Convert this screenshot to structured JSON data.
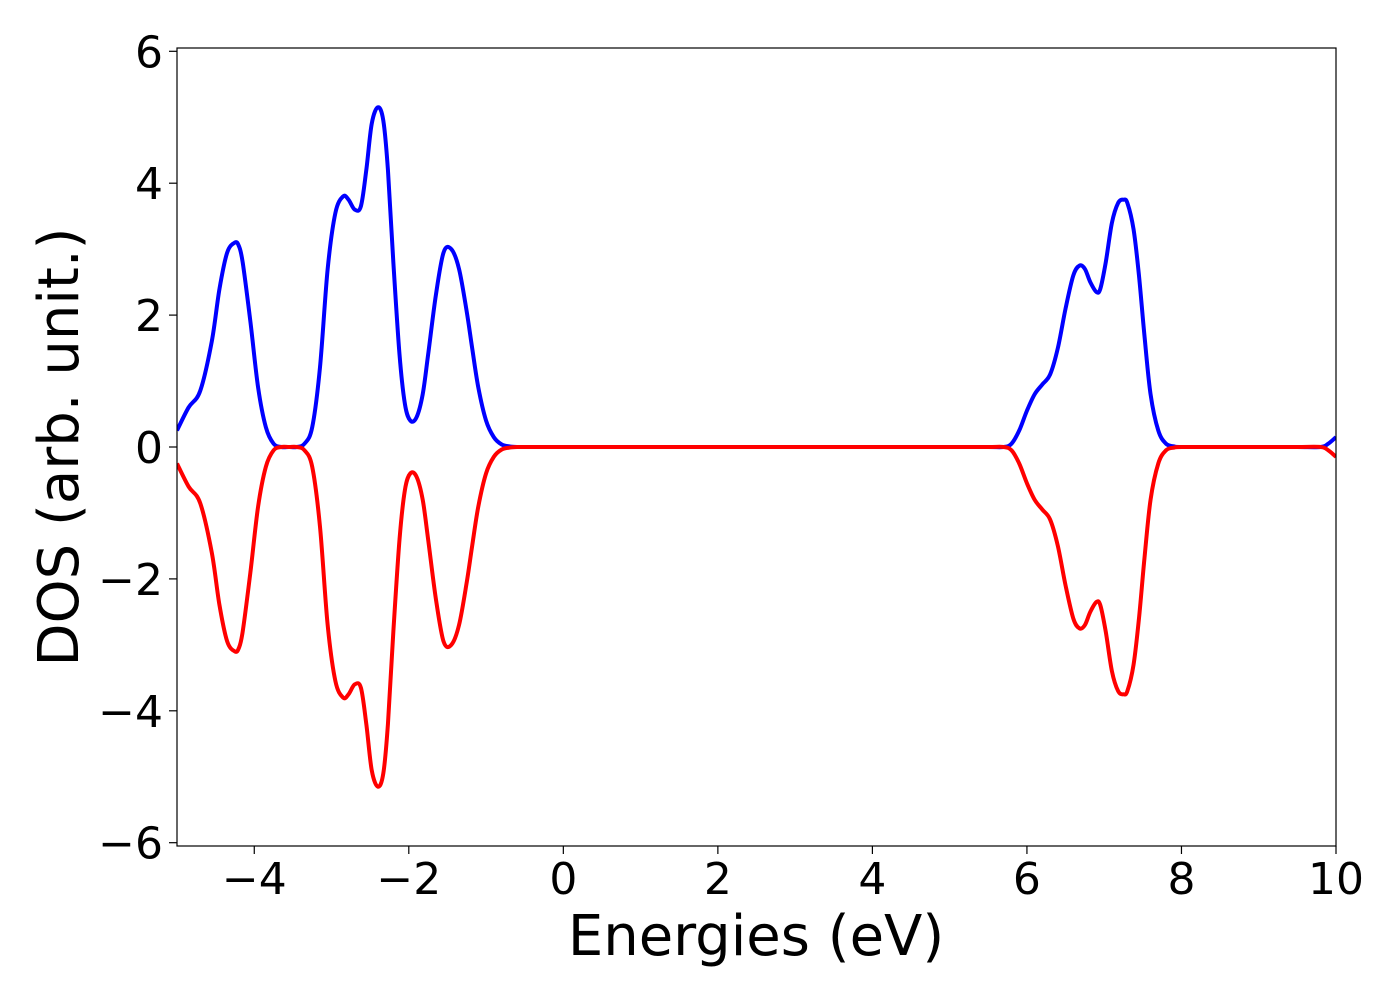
{
  "chart_data": {
    "type": "line",
    "title": "",
    "xlabel": "Energies (eV)",
    "ylabel": "DOS (arb. unit.)",
    "xlim": [
      -5,
      10
    ],
    "ylim": [
      -6.05,
      6.05
    ],
    "xticks": [
      -4,
      -2,
      0,
      2,
      4,
      6,
      8,
      10
    ],
    "xtick_labels": [
      "−4",
      "−2",
      "0",
      "2",
      "4",
      "6",
      "8",
      "10"
    ],
    "yticks": [
      6,
      4,
      2,
      0,
      -2,
      -4,
      -6
    ],
    "ytick_labels": [
      "6",
      "4",
      "2",
      "0",
      "−2",
      "−4",
      "−6"
    ],
    "grid": false,
    "legend": "none",
    "series": [
      {
        "color": "#0000ff",
        "x": [
          -5.0,
          -4.85,
          -4.7,
          -4.55,
          -4.45,
          -4.35,
          -4.25,
          -4.2,
          -4.15,
          -4.05,
          -3.95,
          -3.85,
          -3.75,
          -3.65,
          -3.55,
          -3.45,
          -3.35,
          -3.25,
          -3.15,
          -3.05,
          -2.95,
          -2.85,
          -2.78,
          -2.7,
          -2.62,
          -2.55,
          -2.48,
          -2.4,
          -2.33,
          -2.27,
          -2.2,
          -2.12,
          -2.05,
          -1.98,
          -1.9,
          -1.82,
          -1.75,
          -1.65,
          -1.55,
          -1.45,
          -1.35,
          -1.25,
          -1.18,
          -1.1,
          -1.0,
          -0.9,
          -0.8,
          -0.7,
          -0.6,
          -0.5,
          -0.4,
          -0.3,
          0.0,
          1.0,
          2.0,
          3.0,
          4.0,
          5.0,
          5.5,
          5.7,
          5.8,
          5.9,
          6.0,
          6.1,
          6.2,
          6.3,
          6.4,
          6.5,
          6.6,
          6.68,
          6.75,
          6.82,
          6.9,
          6.95,
          7.02,
          7.1,
          7.18,
          7.25,
          7.3,
          7.38,
          7.45,
          7.52,
          7.6,
          7.7,
          7.8,
          7.9,
          8.0,
          8.5,
          9.0,
          9.5,
          9.8,
          9.9,
          10.0
        ],
        "y": [
          0.25,
          0.6,
          0.85,
          1.6,
          2.4,
          2.95,
          3.1,
          3.05,
          2.8,
          1.9,
          0.9,
          0.3,
          0.05,
          0.0,
          0.0,
          0.0,
          0.05,
          0.3,
          1.2,
          2.7,
          3.55,
          3.8,
          3.75,
          3.6,
          3.65,
          4.2,
          4.9,
          5.15,
          4.95,
          4.2,
          2.8,
          1.4,
          0.65,
          0.4,
          0.45,
          0.8,
          1.4,
          2.3,
          2.95,
          3.0,
          2.7,
          2.05,
          1.5,
          0.9,
          0.4,
          0.15,
          0.04,
          0.01,
          0.0,
          0.0,
          0.0,
          0.0,
          0.0,
          0.0,
          0.0,
          0.0,
          0.0,
          0.0,
          0.0,
          0.0,
          0.05,
          0.25,
          0.55,
          0.8,
          0.95,
          1.1,
          1.5,
          2.1,
          2.6,
          2.75,
          2.7,
          2.5,
          2.35,
          2.4,
          2.8,
          3.4,
          3.7,
          3.75,
          3.7,
          3.3,
          2.6,
          1.7,
          0.8,
          0.25,
          0.05,
          0.01,
          0.0,
          0.0,
          0.0,
          0.0,
          0.0,
          0.05,
          0.15
        ]
      },
      {
        "color": "#ff0000",
        "x": [
          -5.0,
          -4.85,
          -4.7,
          -4.55,
          -4.45,
          -4.35,
          -4.25,
          -4.2,
          -4.15,
          -4.05,
          -3.95,
          -3.85,
          -3.75,
          -3.65,
          -3.55,
          -3.45,
          -3.35,
          -3.25,
          -3.15,
          -3.05,
          -2.95,
          -2.85,
          -2.78,
          -2.7,
          -2.62,
          -2.55,
          -2.48,
          -2.4,
          -2.33,
          -2.27,
          -2.2,
          -2.12,
          -2.05,
          -1.98,
          -1.9,
          -1.82,
          -1.75,
          -1.65,
          -1.55,
          -1.45,
          -1.35,
          -1.25,
          -1.18,
          -1.1,
          -1.0,
          -0.9,
          -0.8,
          -0.7,
          -0.6,
          -0.5,
          -0.4,
          -0.3,
          0.0,
          1.0,
          2.0,
          3.0,
          4.0,
          5.0,
          5.5,
          5.7,
          5.8,
          5.9,
          6.0,
          6.1,
          6.2,
          6.3,
          6.4,
          6.5,
          6.6,
          6.68,
          6.75,
          6.82,
          6.9,
          6.95,
          7.02,
          7.1,
          7.18,
          7.25,
          7.3,
          7.38,
          7.45,
          7.52,
          7.6,
          7.7,
          7.8,
          7.9,
          8.0,
          8.5,
          9.0,
          9.5,
          9.8,
          9.9,
          10.0
        ],
        "y": [
          -0.25,
          -0.6,
          -0.85,
          -1.6,
          -2.4,
          -2.95,
          -3.1,
          -3.05,
          -2.8,
          -1.9,
          -0.9,
          -0.3,
          -0.05,
          0.0,
          0.0,
          0.0,
          -0.05,
          -0.3,
          -1.2,
          -2.7,
          -3.55,
          -3.8,
          -3.75,
          -3.6,
          -3.65,
          -4.2,
          -4.9,
          -5.15,
          -4.95,
          -4.2,
          -2.8,
          -1.4,
          -0.65,
          -0.4,
          -0.45,
          -0.8,
          -1.4,
          -2.3,
          -2.95,
          -3.0,
          -2.7,
          -2.05,
          -1.5,
          -0.9,
          -0.4,
          -0.15,
          -0.04,
          -0.01,
          0.0,
          0.0,
          0.0,
          0.0,
          0.0,
          0.0,
          0.0,
          0.0,
          0.0,
          0.0,
          0.0,
          0.0,
          -0.05,
          -0.25,
          -0.55,
          -0.8,
          -0.95,
          -1.1,
          -1.5,
          -2.1,
          -2.6,
          -2.75,
          -2.7,
          -2.5,
          -2.35,
          -2.4,
          -2.8,
          -3.4,
          -3.7,
          -3.75,
          -3.7,
          -3.3,
          -2.6,
          -1.7,
          -0.8,
          -0.25,
          -0.05,
          -0.01,
          0.0,
          0.0,
          0.0,
          0.0,
          0.0,
          -0.05,
          -0.15
        ]
      }
    ]
  }
}
